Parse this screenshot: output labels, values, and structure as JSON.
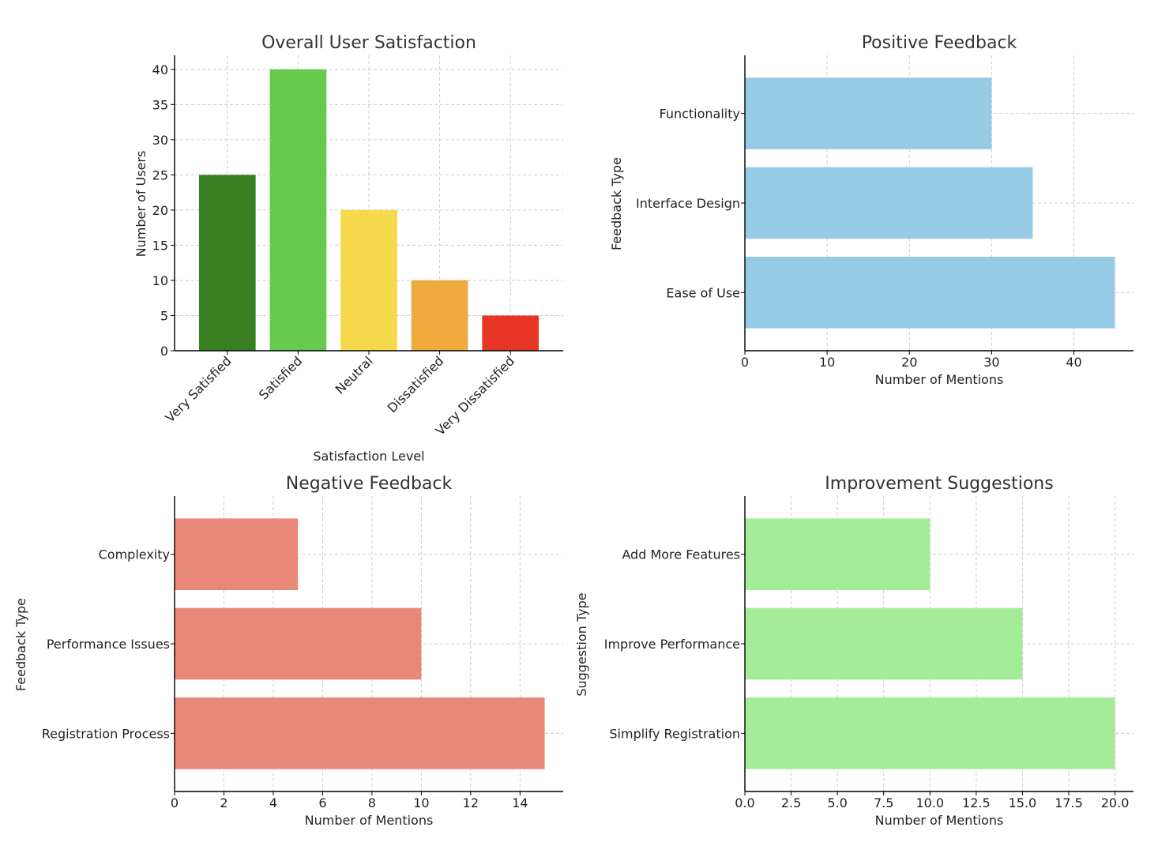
{
  "chart_data": [
    {
      "type": "bar",
      "title": "Overall User Satisfaction",
      "xlabel": "Satisfaction Level",
      "ylabel": "Number of Users",
      "categories": [
        "Very Satisfied",
        "Satisfied",
        "Neutral",
        "Dissatisfied",
        "Very Dissatisfied"
      ],
      "values": [
        25,
        40,
        20,
        10,
        5
      ],
      "colors": [
        "#387f22",
        "#66cb4c",
        "#f6d84b",
        "#efaa3d",
        "#e73626"
      ],
      "ylim": [
        0,
        42
      ],
      "yticks": [
        0,
        5,
        10,
        15,
        20,
        25,
        30,
        35,
        40
      ],
      "grid": true
    },
    {
      "type": "bar",
      "orientation": "horizontal",
      "title": "Positive Feedback",
      "xlabel": "Number of Mentions",
      "ylabel": "Feedback Type",
      "categories": [
        "Ease of Use",
        "Interface Design",
        "Functionality"
      ],
      "values": [
        45,
        35,
        30
      ],
      "color": "#96cbe6",
      "xlim": [
        0,
        47.25
      ],
      "xticks": [
        0,
        10,
        20,
        30,
        40
      ],
      "grid": true
    },
    {
      "type": "bar",
      "orientation": "horizontal",
      "title": "Negative Feedback",
      "xlabel": "Number of Mentions",
      "ylabel": "Feedback Type",
      "categories": [
        "Registration Process",
        "Performance Issues",
        "Complexity"
      ],
      "values": [
        15,
        10,
        5
      ],
      "color": "#e88878",
      "xlim": [
        0,
        15.75
      ],
      "xticks": [
        0,
        2,
        4,
        6,
        8,
        10,
        12,
        14
      ],
      "grid": true
    },
    {
      "type": "bar",
      "orientation": "horizontal",
      "title": "Improvement Suggestions",
      "xlabel": "Number of Mentions",
      "ylabel": "Suggestion Type",
      "categories": [
        "Simplify Registration",
        "Improve Performance",
        "Add More Features"
      ],
      "values": [
        20,
        15,
        10
      ],
      "color": "#a5ec98",
      "xlim": [
        0,
        21
      ],
      "xticks": [
        0,
        2.5,
        5,
        7.5,
        10,
        12.5,
        15,
        17.5,
        20
      ],
      "xtick_labels": [
        "0.0",
        "2.5",
        "5.0",
        "7.5",
        "10.0",
        "12.5",
        "15.0",
        "17.5",
        "20.0"
      ],
      "grid": true
    }
  ]
}
